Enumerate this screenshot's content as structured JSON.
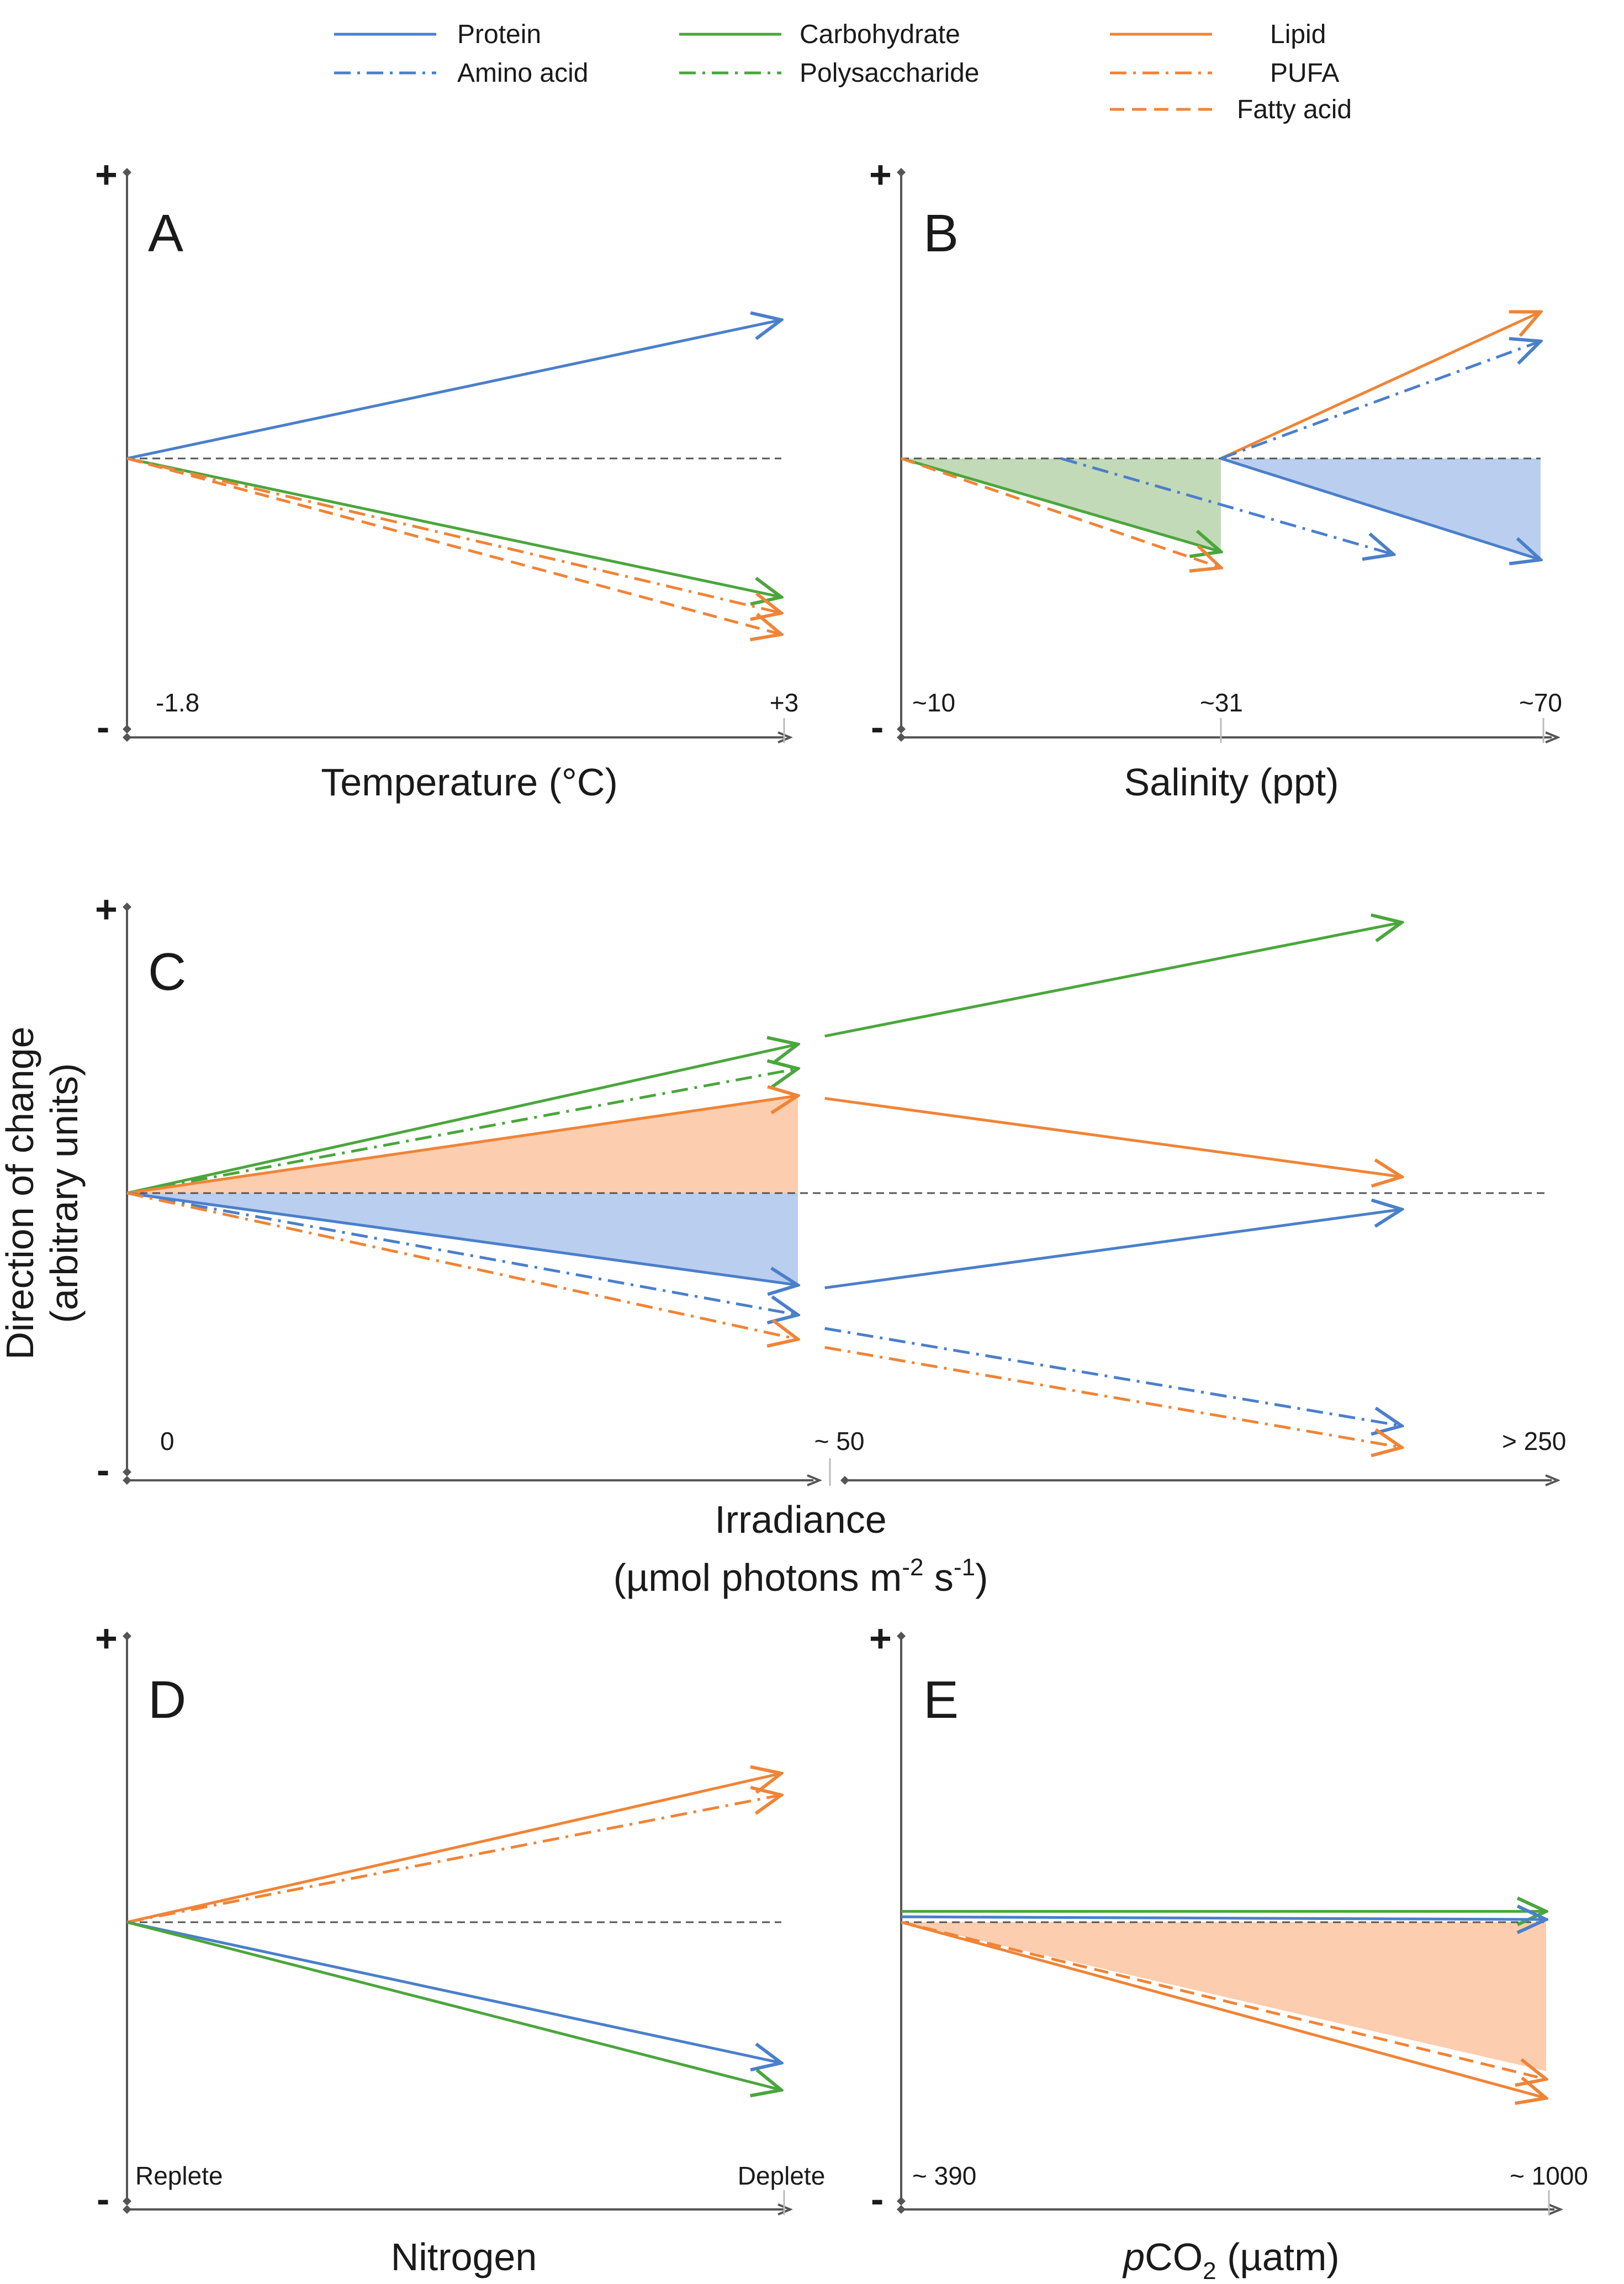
{
  "legend": {
    "items": [
      {
        "key": "protein",
        "label": "Protein"
      },
      {
        "key": "amino",
        "label": "Amino acid"
      },
      {
        "key": "carb",
        "label": "Carbohydrate"
      },
      {
        "key": "poly",
        "label": "Polysaccharide"
      },
      {
        "key": "lipid",
        "label": "Lipid"
      },
      {
        "key": "pufa",
        "label": "PUFA"
      },
      {
        "key": "fatty",
        "label": "Fatty acid"
      }
    ]
  },
  "styles": {
    "protein": {
      "color": "#4a7fcb",
      "dash": "solid"
    },
    "amino": {
      "color": "#4a7fcb",
      "dash": "dashdot"
    },
    "carb": {
      "color": "#4aa63c",
      "dash": "solid"
    },
    "poly": {
      "color": "#4aa63c",
      "dash": "dashdot"
    },
    "lipid": {
      "color": "#f08436",
      "dash": "solid"
    },
    "pufa": {
      "color": "#f08436",
      "dash": "dashdot"
    },
    "fatty": {
      "color": "#f08436",
      "dash": "dashed"
    },
    "fill_green": "#b8d3ac",
    "fill_blue": "#aec6ec",
    "fill_orange": "#fbc4a0",
    "axis_color": "#555555",
    "baseline_color": "#555555"
  },
  "shared": {
    "y_axis_label_line1": "Direction of change",
    "y_axis_label_line2": "(arbitrary units)",
    "plus_sign": "+",
    "minus_sign": "-"
  },
  "chart_data": [
    {
      "type": "line",
      "panel": "A",
      "xlabel": "Temperature (°C)",
      "ylabel": "Direction of change (arbitrary units)",
      "x_ticks": [
        "-1.8",
        "+3"
      ],
      "ylim": [
        -1,
        1
      ],
      "series": [
        {
          "name": "Protein",
          "style": "protein",
          "x": [
            0,
            1
          ],
          "y": [
            0,
            0.52
          ]
        },
        {
          "name": "Carbohydrate",
          "style": "carb",
          "x": [
            0,
            1
          ],
          "y": [
            0,
            -0.52
          ]
        },
        {
          "name": "PUFA",
          "style": "pufa",
          "x": [
            0,
            1
          ],
          "y": [
            0,
            -0.58
          ]
        },
        {
          "name": "Fatty acid",
          "style": "fatty",
          "x": [
            0,
            1
          ],
          "y": [
            0,
            -0.66
          ]
        }
      ],
      "shaded": []
    },
    {
      "type": "line",
      "panel": "B",
      "xlabel": "Salinity (ppt)",
      "ylabel": "Direction of change (arbitrary units)",
      "x_ticks": [
        "~10",
        "~31",
        "~70"
      ],
      "ylim": [
        -1,
        1
      ],
      "series": [
        {
          "name": "Carbohydrate",
          "style": "carb",
          "x": [
            0,
            0.5
          ],
          "y": [
            0,
            -0.35
          ]
        },
        {
          "name": "Fatty acid",
          "style": "fatty",
          "x": [
            0,
            0.5
          ],
          "y": [
            0,
            -0.41
          ]
        },
        {
          "name": "Amino acid",
          "style": "amino",
          "x": [
            0.25,
            0.77
          ],
          "y": [
            0,
            -0.36
          ]
        },
        {
          "name": "Lipid",
          "style": "lipid",
          "x": [
            0.5,
            1
          ],
          "y": [
            0,
            0.55
          ]
        },
        {
          "name": "Amino acid",
          "style": "amino",
          "x": [
            0.5,
            1
          ],
          "y": [
            0,
            0.44
          ]
        },
        {
          "name": "Protein",
          "style": "protein",
          "x": [
            0.5,
            1
          ],
          "y": [
            0,
            -0.38
          ]
        }
      ],
      "shaded": [
        {
          "fill": "fill_green",
          "x0": 0,
          "x1": 0.5,
          "y_top": 0,
          "y_bottom_end": -0.35
        },
        {
          "fill": "fill_blue",
          "x0": 0.5,
          "x1": 1,
          "y_top": 0,
          "y_bottom_end": -0.38
        }
      ]
    },
    {
      "type": "line",
      "panel": "C",
      "xlabel_line1": "Irradiance",
      "xlabel_line2": "(µmol photons m-2 s-1)",
      "ylabel": "Direction of change (arbitrary units)",
      "x_ticks": [
        "0",
        "~ 50",
        "> 250"
      ],
      "ylim": [
        -1,
        1
      ],
      "segments": [
        "0 to ~50",
        "~50 to >250"
      ],
      "series": [
        {
          "name": "Carbohydrate",
          "style": "carb",
          "x": [
            0,
            0.5
          ],
          "y": [
            0,
            0.55
          ]
        },
        {
          "name": "Polysaccharide",
          "style": "poly",
          "x": [
            0,
            0.5
          ],
          "y": [
            0,
            0.46
          ]
        },
        {
          "name": "Lipid",
          "style": "lipid",
          "x": [
            0,
            0.5
          ],
          "y": [
            0,
            0.36
          ]
        },
        {
          "name": "Protein",
          "style": "protein",
          "x": [
            0,
            0.5
          ],
          "y": [
            0,
            -0.34
          ]
        },
        {
          "name": "Amino acid",
          "style": "amino",
          "x": [
            0,
            0.5
          ],
          "y": [
            0,
            -0.45
          ]
        },
        {
          "name": "PUFA",
          "style": "pufa",
          "x": [
            0,
            0.5
          ],
          "y": [
            0,
            -0.54
          ]
        },
        {
          "name": "Carbohydrate",
          "style": "carb",
          "x": [
            0.52,
            0.95
          ],
          "y": [
            0.58,
            1.0
          ]
        },
        {
          "name": "Lipid",
          "style": "lipid",
          "x": [
            0.52,
            0.95
          ],
          "y": [
            0.35,
            0.06
          ]
        },
        {
          "name": "Protein",
          "style": "protein",
          "x": [
            0.52,
            0.95
          ],
          "y": [
            -0.35,
            -0.06
          ]
        },
        {
          "name": "Amino acid",
          "style": "amino",
          "x": [
            0.52,
            0.95
          ],
          "y": [
            -0.5,
            -0.86
          ]
        },
        {
          "name": "PUFA",
          "style": "pufa",
          "x": [
            0.52,
            0.95
          ],
          "y": [
            -0.57,
            -0.94
          ]
        }
      ],
      "shaded": [
        {
          "fill": "fill_orange",
          "x0": 0,
          "x1": 0.5,
          "y_top_end": 0.36,
          "y_bottom": 0
        },
        {
          "fill": "fill_blue",
          "x0": 0,
          "x1": 0.5,
          "y_top": 0,
          "y_bottom_end": -0.34
        }
      ]
    },
    {
      "type": "line",
      "panel": "D",
      "xlabel": "Nitrogen",
      "ylabel": "Direction of change (arbitrary units)",
      "x_ticks": [
        "Replete",
        "Deplete"
      ],
      "ylim": [
        -1,
        1
      ],
      "series": [
        {
          "name": "Lipid",
          "style": "lipid",
          "x": [
            0,
            1
          ],
          "y": [
            0,
            0.55
          ]
        },
        {
          "name": "PUFA",
          "style": "pufa",
          "x": [
            0,
            1
          ],
          "y": [
            0,
            0.47
          ]
        },
        {
          "name": "Protein",
          "style": "protein",
          "x": [
            0,
            1
          ],
          "y": [
            0,
            -0.52
          ]
        },
        {
          "name": "Carbohydrate",
          "style": "carb",
          "x": [
            0,
            1
          ],
          "y": [
            0,
            -0.62
          ]
        }
      ],
      "shaded": []
    },
    {
      "type": "line",
      "panel": "E",
      "xlabel_prefix": "p",
      "xlabel_rest": "CO",
      "xlabel_sub": "2",
      "xlabel_unit": " (µatm)",
      "ylabel": "Direction of change (arbitrary units)",
      "x_ticks": [
        "~ 390",
        "~ 1000"
      ],
      "ylim": [
        -1,
        1
      ],
      "series": [
        {
          "name": "Carbohydrate",
          "style": "carb",
          "x": [
            0,
            1
          ],
          "y": [
            0.04,
            0.04
          ]
        },
        {
          "name": "Protein",
          "style": "protein",
          "x": [
            0,
            1
          ],
          "y": [
            0.02,
            0.01
          ]
        },
        {
          "name": "Fatty acid",
          "style": "fatty",
          "x": [
            0,
            1
          ],
          "y": [
            0,
            -0.58
          ]
        },
        {
          "name": "Lipid",
          "style": "lipid",
          "x": [
            0,
            1
          ],
          "y": [
            0,
            -0.65
          ]
        }
      ],
      "shaded": [
        {
          "fill": "fill_orange",
          "x0": 0,
          "x1": 1,
          "y_top": 0,
          "y_bottom_end": -0.55
        }
      ]
    }
  ]
}
